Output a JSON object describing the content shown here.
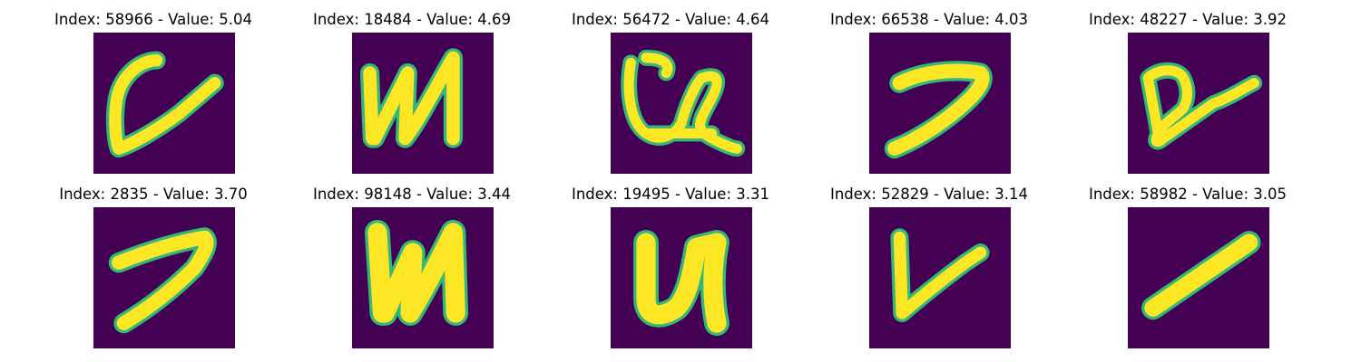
{
  "colors": {
    "background": "#440154",
    "stroke": "#fde725",
    "edge": "#35b779"
  },
  "tiles": [
    {
      "title": "Index: 58966 - Value: 5.04",
      "glyph": "loop-v-stroke"
    },
    {
      "title": "Index: 18484 - Value: 4.69",
      "glyph": "cyrillic-i"
    },
    {
      "title": "Index: 56472 - Value: 4.64",
      "glyph": "u-with-tail"
    },
    {
      "title": "Index: 66538 - Value: 4.03",
      "glyph": "seven-like"
    },
    {
      "title": "Index: 48227 - Value: 3.92",
      "glyph": "looped-d"
    },
    {
      "title": "Index: 2835 - Value: 3.70",
      "glyph": "seven-like"
    },
    {
      "title": "Index: 98148 - Value: 3.44",
      "glyph": "cyrillic-i-bold"
    },
    {
      "title": "Index: 19495 - Value: 3.31",
      "glyph": "u-shape"
    },
    {
      "title": "Index: 52829 - Value: 3.14",
      "glyph": "v-shape"
    },
    {
      "title": "Index: 58982 - Value: 3.05",
      "glyph": "slash"
    }
  ]
}
